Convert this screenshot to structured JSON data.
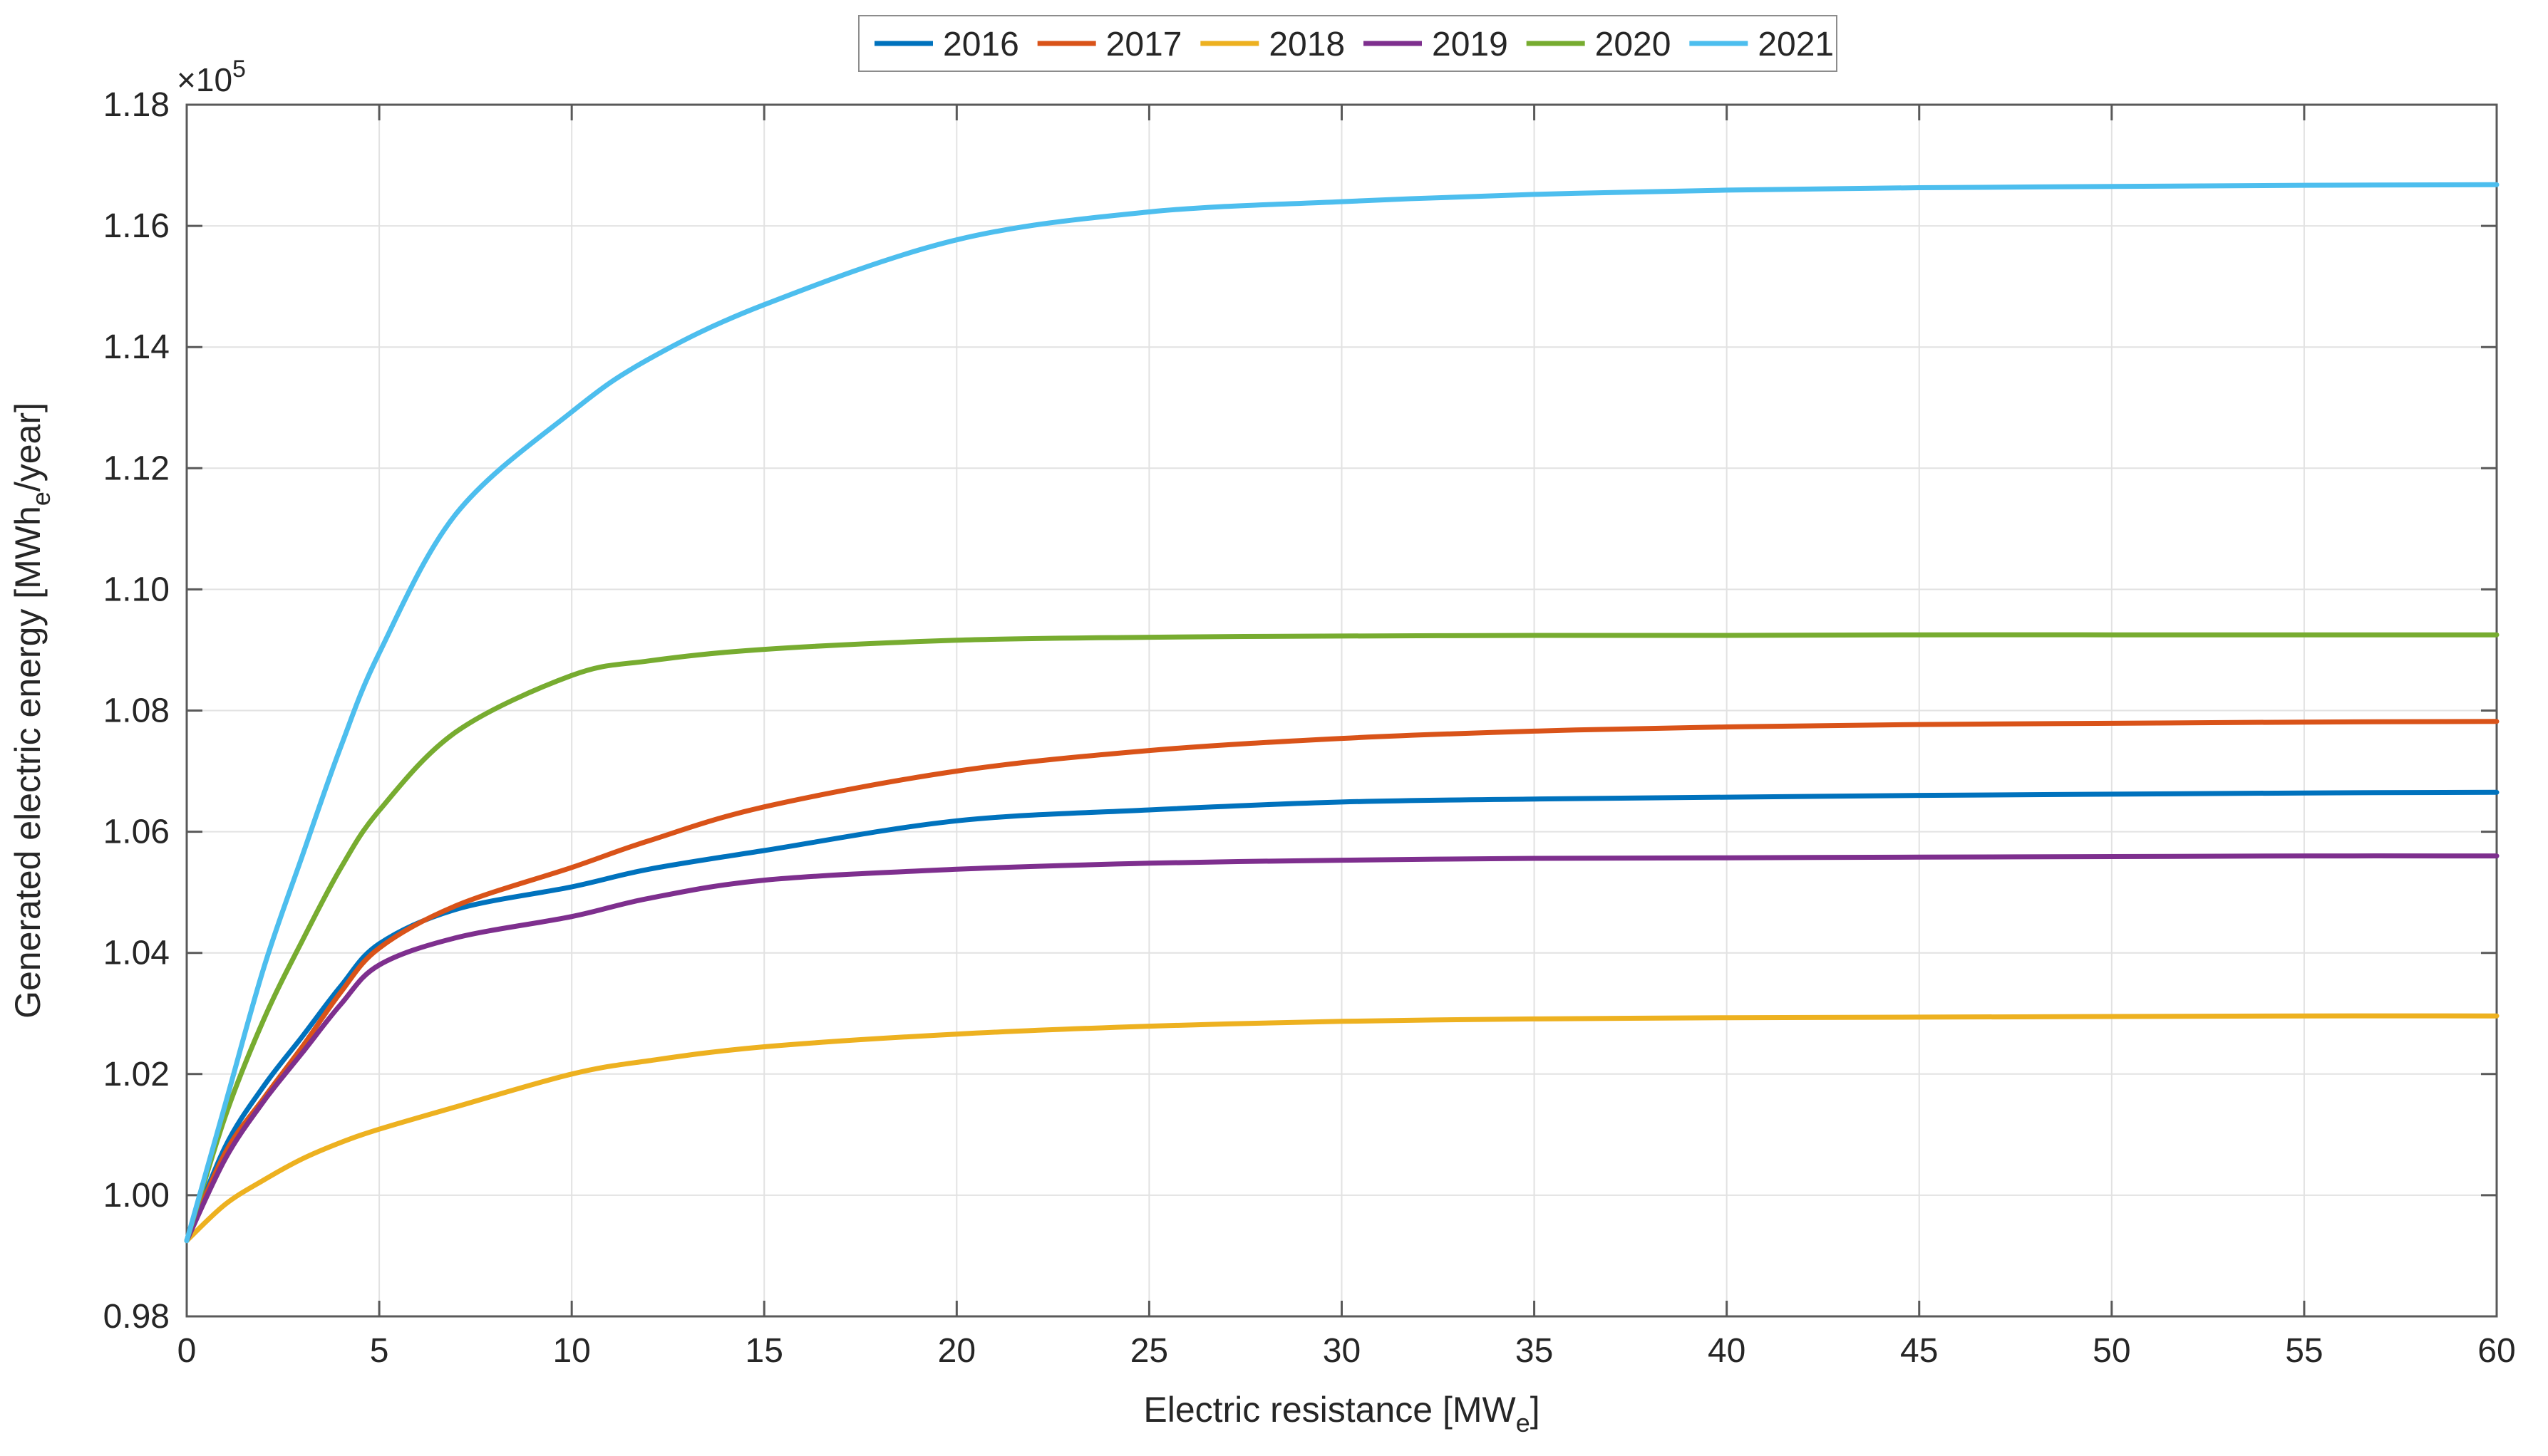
{
  "figure": {
    "exponent": {
      "base": "×10",
      "power": "5"
    },
    "xlabel": {
      "pre": "Electric resistance [MW",
      "sub": "e",
      "post": "]"
    },
    "ylabel": {
      "pre": "Generated electric energy [MWh",
      "sub": "e",
      "post": "/year]"
    },
    "axis_color": "#595959",
    "grid_color": "#e2e2e2",
    "text_color": "#262626",
    "legend_border_color": "#8c8c8c",
    "background": "#ffffff"
  },
  "chart_data": {
    "type": "line",
    "title": "",
    "xlabel": "Electric resistance [MW_e]",
    "ylabel": "Generated electric energy [MWh_e/year]",
    "value_unit": "×10^5 MWh_e/year",
    "y_exponent_label": "×10^5",
    "x_range": [
      0,
      60
    ],
    "y_range": [
      0.98,
      1.18
    ],
    "grid": true,
    "legend_position": "top-center",
    "xticks": [
      0,
      5,
      10,
      15,
      20,
      25,
      30,
      35,
      40,
      45,
      50,
      55,
      60
    ],
    "ytick_labels": [
      "0.98",
      "1.00",
      "1.02",
      "1.04",
      "1.06",
      "1.08",
      "1.10",
      "1.12",
      "1.14",
      "1.16",
      "1.18"
    ],
    "yticks": [
      0.98,
      1.0,
      1.02,
      1.04,
      1.06,
      1.08,
      1.1,
      1.12,
      1.14,
      1.16,
      1.18
    ],
    "x": [
      0,
      1,
      2,
      3,
      4,
      5,
      7,
      10,
      12,
      15,
      20,
      25,
      30,
      35,
      40,
      45,
      50,
      55,
      60
    ],
    "series": [
      {
        "name": "2016",
        "color": "#0072BD",
        "values": [
          0.9925,
          1.008,
          1.018,
          1.0262,
          1.0345,
          1.0415,
          1.0472,
          1.0509,
          1.0538,
          1.0569,
          1.0618,
          1.0636,
          1.0649,
          1.0654,
          1.0657,
          1.066,
          1.0662,
          1.0664,
          1.0665
        ]
      },
      {
        "name": "2017",
        "color": "#D95319",
        "values": [
          0.9925,
          1.007,
          1.016,
          1.0245,
          1.0335,
          1.0408,
          1.0478,
          1.0541,
          1.0585,
          1.0641,
          1.07,
          1.0734,
          1.0754,
          1.0766,
          1.0773,
          1.0777,
          1.0779,
          1.0781,
          1.0782
        ]
      },
      {
        "name": "2018",
        "color": "#EDB120",
        "values": [
          0.9925,
          0.9985,
          1.0025,
          1.006,
          1.0087,
          1.0109,
          1.0146,
          1.02,
          1.0222,
          1.0245,
          1.0266,
          1.0279,
          1.0287,
          1.0291,
          1.0293,
          1.0294,
          1.0295,
          1.0296,
          1.0296
        ]
      },
      {
        "name": "2019",
        "color": "#7E2F8E",
        "values": [
          0.9925,
          1.006,
          1.0155,
          1.0235,
          1.0315,
          1.038,
          1.0425,
          1.046,
          1.049,
          1.052,
          1.0538,
          1.0548,
          1.0553,
          1.0556,
          1.0557,
          1.0558,
          1.0559,
          1.056,
          1.056
        ]
      },
      {
        "name": "2020",
        "color": "#77AC30",
        "values": [
          0.9925,
          1.013,
          1.029,
          1.042,
          1.054,
          1.0635,
          1.0765,
          1.0858,
          1.0882,
          1.0901,
          1.0916,
          1.0921,
          1.0923,
          1.0924,
          1.0924,
          1.0925,
          1.0925,
          1.0925,
          1.0925
        ]
      },
      {
        "name": "2021",
        "color": "#4DBEEE",
        "values": [
          0.9925,
          1.015,
          1.0375,
          1.056,
          1.074,
          1.0895,
          1.1125,
          1.1293,
          1.138,
          1.147,
          1.1577,
          1.1623,
          1.164,
          1.1652,
          1.1659,
          1.1663,
          1.1665,
          1.1667,
          1.1668
        ]
      }
    ]
  }
}
